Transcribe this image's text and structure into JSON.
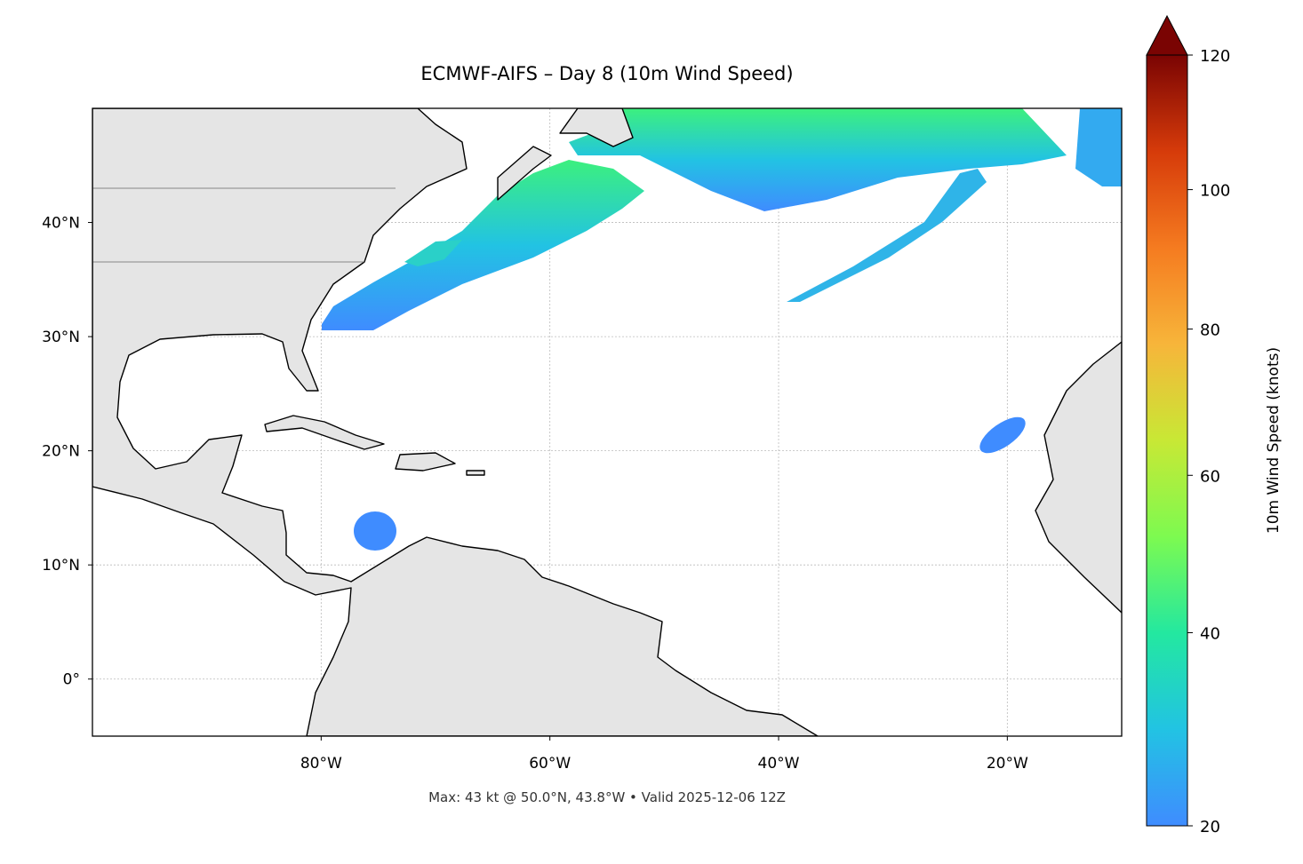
{
  "title": "ECMWF-AIFS – Day 8 (10m Wind Speed)",
  "footer": "Max: 43 kt @ 50.0°N, 43.8°W • Valid 2025-12-06 12Z",
  "map": {
    "lon_range": [
      -100,
      -10
    ],
    "lat_range": [
      -5,
      50
    ],
    "lon_ticks": [
      {
        "value": -80,
        "label": "80°W"
      },
      {
        "value": -60,
        "label": "60°W"
      },
      {
        "value": -40,
        "label": "40°W"
      },
      {
        "value": -20,
        "label": "20°W"
      }
    ],
    "lat_ticks": [
      {
        "value": 0,
        "label": "0°"
      },
      {
        "value": 10,
        "label": "10°N"
      },
      {
        "value": 20,
        "label": "20°N"
      },
      {
        "value": 30,
        "label": "30°N"
      },
      {
        "value": 40,
        "label": "40°N"
      }
    ],
    "grid": true
  },
  "colorbar": {
    "label": "10m Wind Speed (knots)",
    "lim": [
      20,
      120
    ],
    "ticks": [
      20,
      40,
      60,
      80,
      100,
      120
    ],
    "gamma": 0.86,
    "colors": [
      "#3f8cff",
      "#22c3e3",
      "#23e8a0",
      "#7dfa50",
      "#c8e835",
      "#f7b53a",
      "#f57b20",
      "#d63b0a",
      "#7a0403"
    ]
  }
}
